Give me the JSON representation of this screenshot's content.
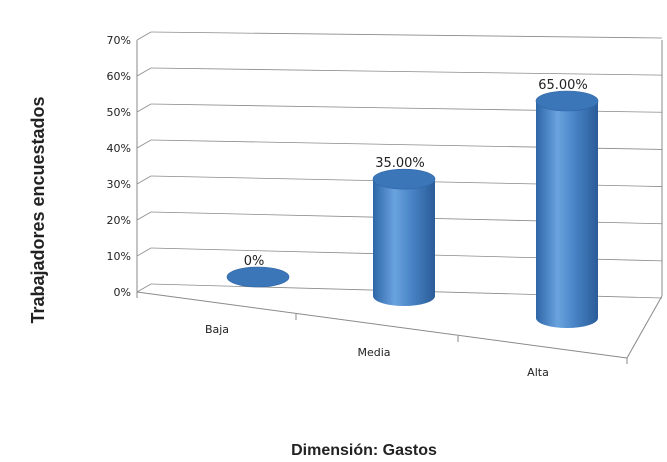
{
  "chart_data": {
    "type": "bar",
    "style": "3d-cylinder",
    "categories": [
      "Baja",
      "Media",
      "Alta"
    ],
    "values": [
      0,
      35,
      65
    ],
    "data_labels": [
      "0%",
      "35.00%",
      "65.00%"
    ],
    "ylim": [
      0,
      70
    ],
    "yticks": [
      "0%",
      "10%",
      "20%",
      "30%",
      "40%",
      "50%",
      "60%",
      "70%"
    ],
    "ylabel": "Trabajadores encuestados",
    "xlabel": "Dimensión: Gastos",
    "grid": true,
    "legend": "none",
    "bar_color": "#4a86c8"
  }
}
